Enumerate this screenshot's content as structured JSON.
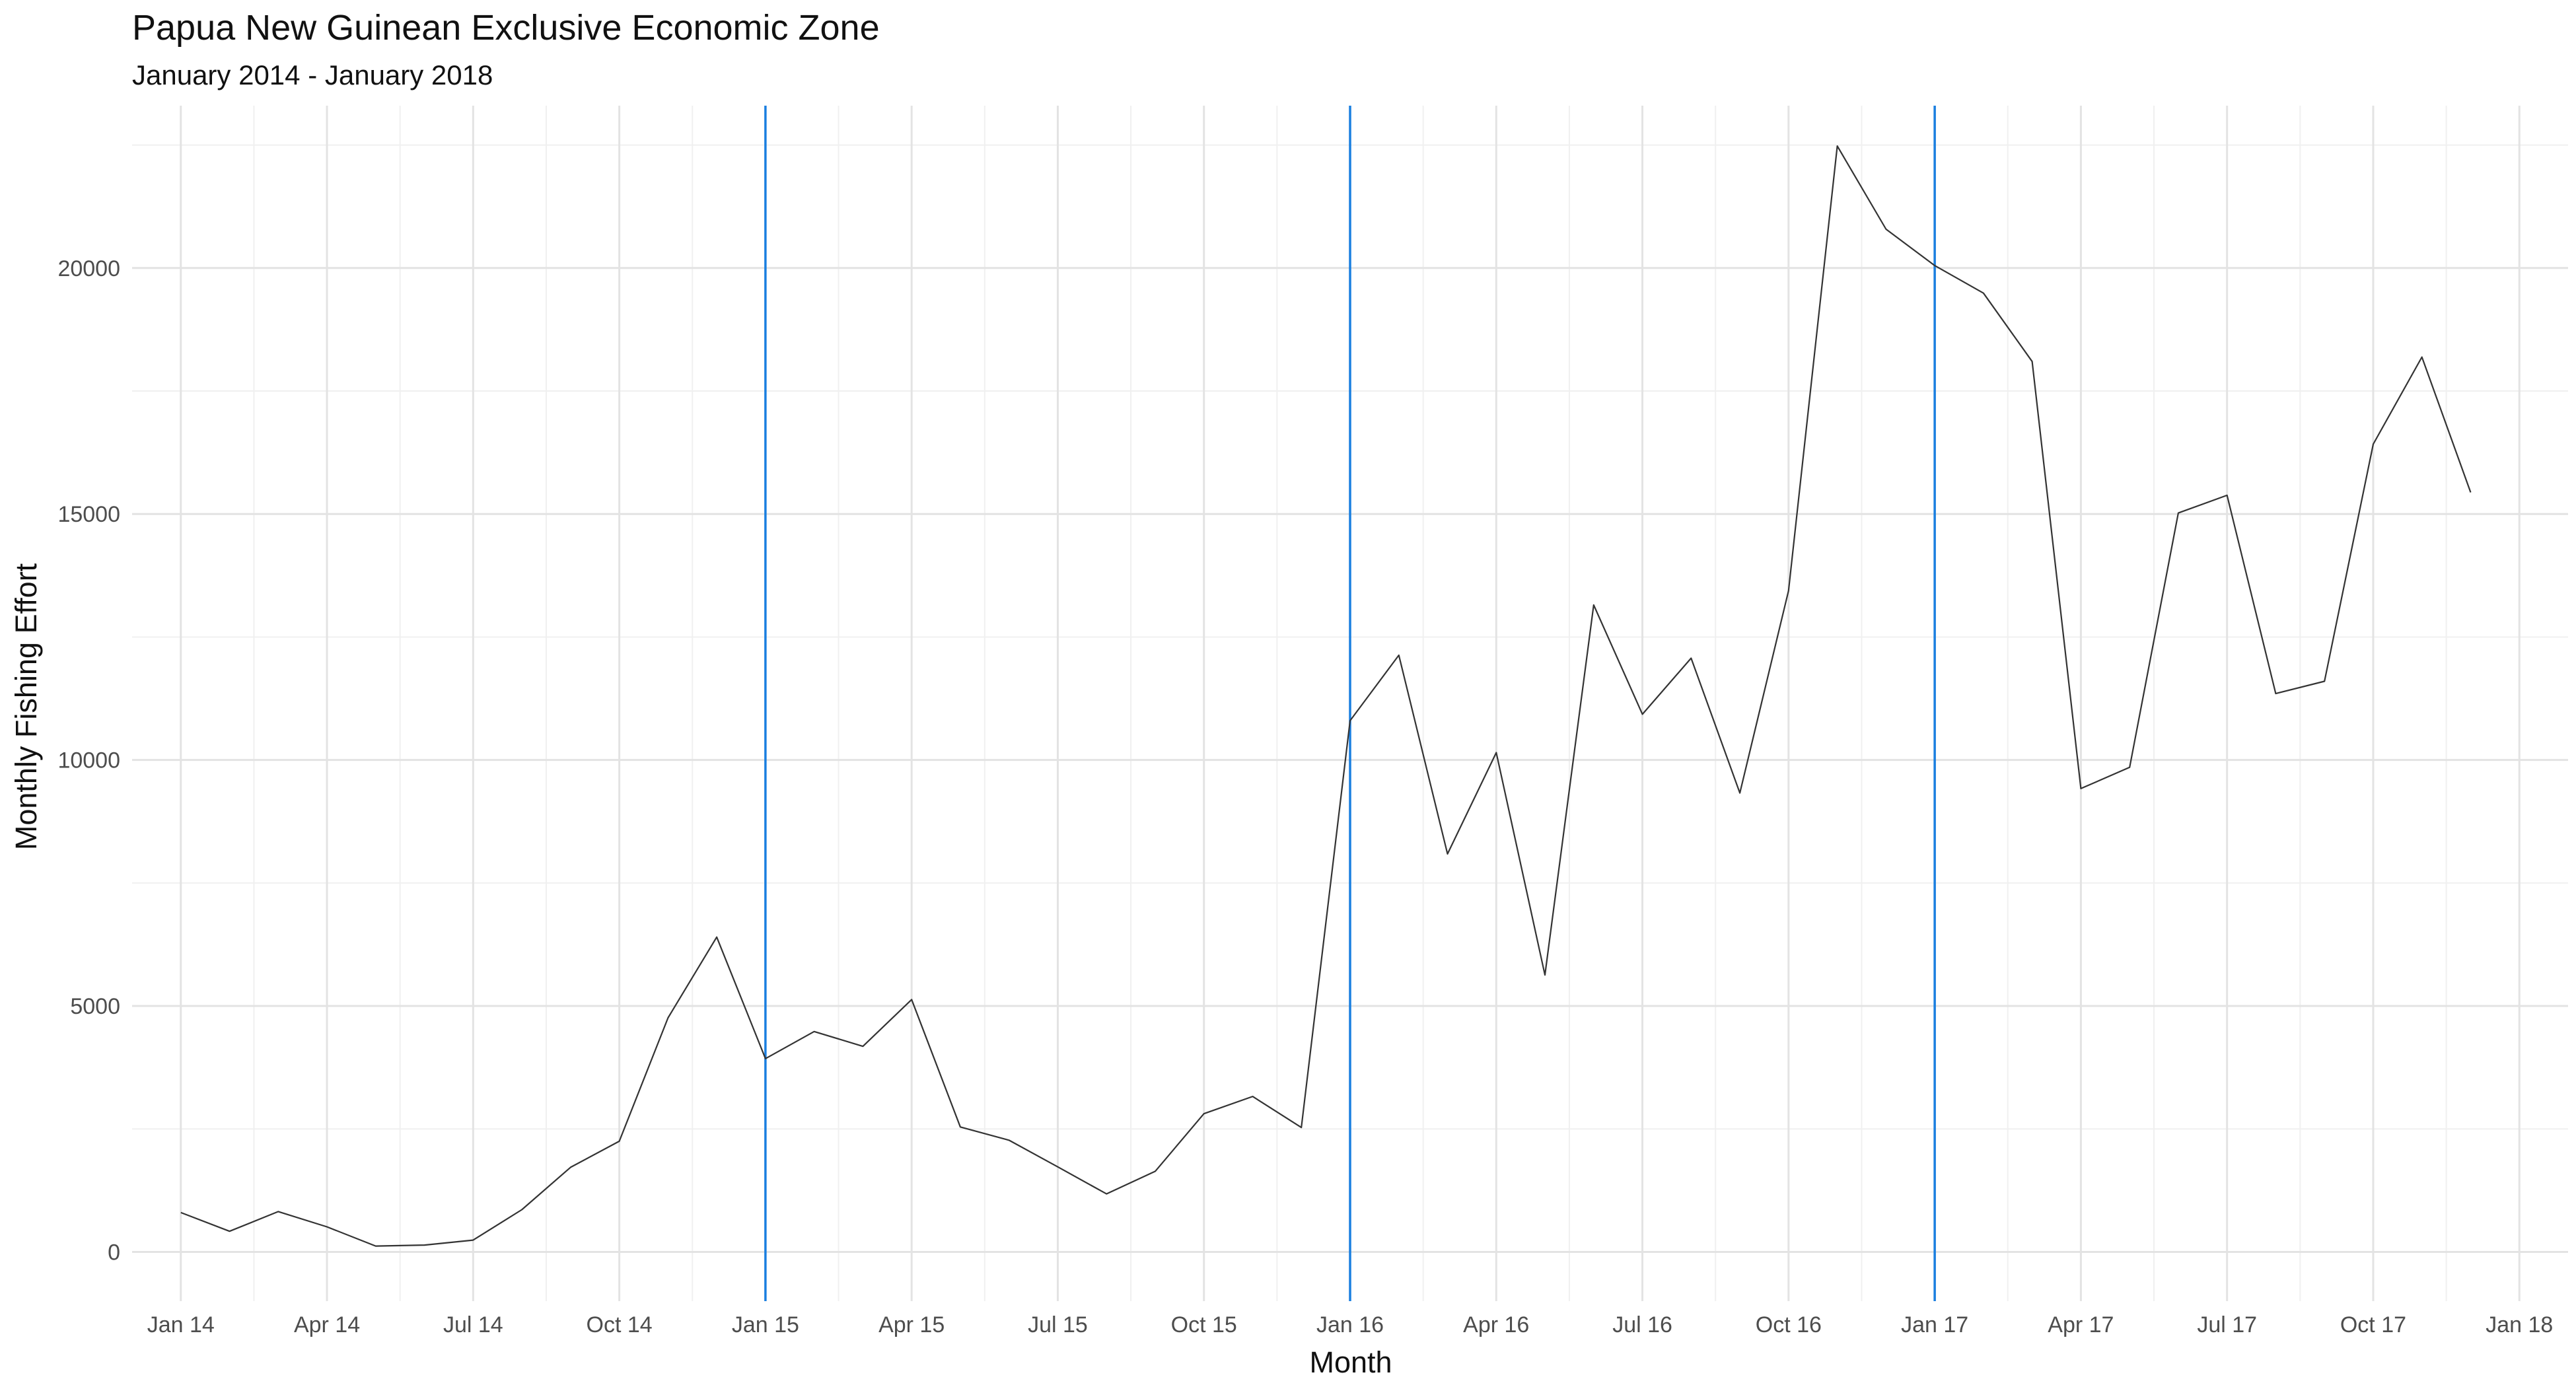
{
  "chart_data": {
    "type": "line",
    "title": "Papua New Guinean Exclusive Economic Zone",
    "subtitle": "January 2014 - January 2018",
    "xlabel": "Month",
    "ylabel": "Monthly Fishing Effort",
    "x_ticks": [
      "Jan 14",
      "Apr 14",
      "Jul 14",
      "Oct 14",
      "Jan 15",
      "Apr 15",
      "Jul 15",
      "Oct 15",
      "Jan 16",
      "Apr 16",
      "Jul 16",
      "Oct 16",
      "Jan 17",
      "Apr 17",
      "Jul 17",
      "Oct 17",
      "Jan 18"
    ],
    "y_ticks": [
      0,
      5000,
      10000,
      15000,
      20000
    ],
    "ylim": [
      -1000,
      23300
    ],
    "xlim": [
      "2013-12-01",
      "2018-02-01"
    ],
    "grid": true,
    "line_color": "#333333",
    "vline_color": "#1a7fe0",
    "vlines": [
      "2015-01",
      "2016-01",
      "2017-01"
    ],
    "x": [
      "2014-01",
      "2014-02",
      "2014-03",
      "2014-04",
      "2014-05",
      "2014-06",
      "2014-07",
      "2014-08",
      "2014-09",
      "2014-10",
      "2014-11",
      "2014-12",
      "2015-01",
      "2015-02",
      "2015-03",
      "2015-04",
      "2015-05",
      "2015-06",
      "2015-07",
      "2015-08",
      "2015-09",
      "2015-10",
      "2015-11",
      "2015-12",
      "2016-01",
      "2016-02",
      "2016-03",
      "2016-04",
      "2016-05",
      "2016-06",
      "2016-07",
      "2016-08",
      "2016-09",
      "2016-10",
      "2016-11",
      "2016-12",
      "2017-01",
      "2017-02",
      "2017-03",
      "2017-04",
      "2017-05",
      "2017-06",
      "2017-07",
      "2017-08",
      "2017-09",
      "2017-10",
      "2017-11",
      "2017-12"
    ],
    "values": [
      800,
      420,
      820,
      510,
      120,
      140,
      240,
      860,
      1720,
      2250,
      4760,
      6400,
      3930,
      4480,
      4180,
      5130,
      2540,
      2270,
      1730,
      1180,
      1640,
      2810,
      3160,
      2530,
      10800,
      12130,
      8090,
      10150,
      5630,
      13150,
      10930,
      12070,
      9330,
      13440,
      22480,
      20790,
      20050,
      19490,
      18100,
      9420,
      9850,
      15020,
      15380,
      11350,
      11600,
      16420,
      18190,
      15440
    ]
  }
}
